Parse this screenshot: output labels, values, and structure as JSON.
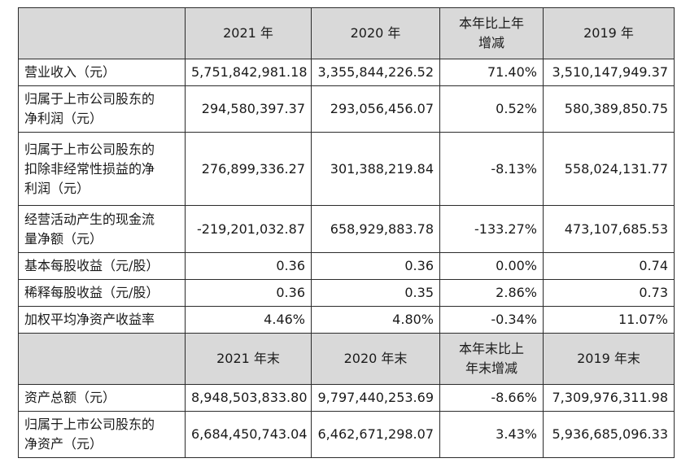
{
  "top_fragment": "",
  "header1": [
    "",
    "2021 年",
    "2020 年",
    "本年比上年增减",
    "2019 年"
  ],
  "header1_split": [
    "本年比上年",
    "增减"
  ],
  "rows1": [
    {
      "label": [
        "营业收入（元）"
      ],
      "values": [
        "5,751,842,981.18",
        "3,355,844,226.52",
        "71.40%",
        "3,510,147,949.37"
      ]
    },
    {
      "label": [
        "归属于上市公司股东的",
        "净利润（元）"
      ],
      "values": [
        "294,580,397.37",
        "293,056,456.07",
        "0.52%",
        "580,389,850.75"
      ]
    },
    {
      "label": [
        "归属于上市公司股东的",
        "扣除非经常性损益的净",
        "利润（元）"
      ],
      "values": [
        "276,899,336.27",
        "301,388,219.84",
        "-8.13%",
        "558,024,131.77"
      ]
    },
    {
      "label": [
        "经营活动产生的现金流",
        "量净额（元）"
      ],
      "values": [
        "-219,201,032.87",
        "658,929,883.78",
        "-133.27%",
        "473,107,685.53"
      ]
    },
    {
      "label": [
        "基本每股收益（元/股）"
      ],
      "values": [
        "0.36",
        "0.36",
        "0.00%",
        "0.74"
      ]
    },
    {
      "label": [
        "稀释每股收益（元/股）"
      ],
      "values": [
        "0.36",
        "0.35",
        "2.86%",
        "0.73"
      ]
    },
    {
      "label": [
        "加权平均净资产收益率"
      ],
      "values": [
        "4.46%",
        "4.80%",
        "-0.34%",
        "11.07%"
      ]
    }
  ],
  "header2": [
    "",
    "2021 年末",
    "2020 年末",
    "本年末比上年末增减",
    "2019 年末"
  ],
  "header2_split": [
    "本年末比上",
    "年末增减"
  ],
  "rows2": [
    {
      "label": [
        "资产总额（元）"
      ],
      "values": [
        "8,948,503,833.80",
        "9,797,440,253.69",
        "-8.66%",
        "7,309,976,311.98"
      ]
    },
    {
      "label": [
        "归属于上市公司股东的",
        "净资产（元）"
      ],
      "values": [
        "6,684,450,743.04",
        "6,462,671,298.07",
        "3.43%",
        "5,936,685,096.33"
      ]
    }
  ]
}
